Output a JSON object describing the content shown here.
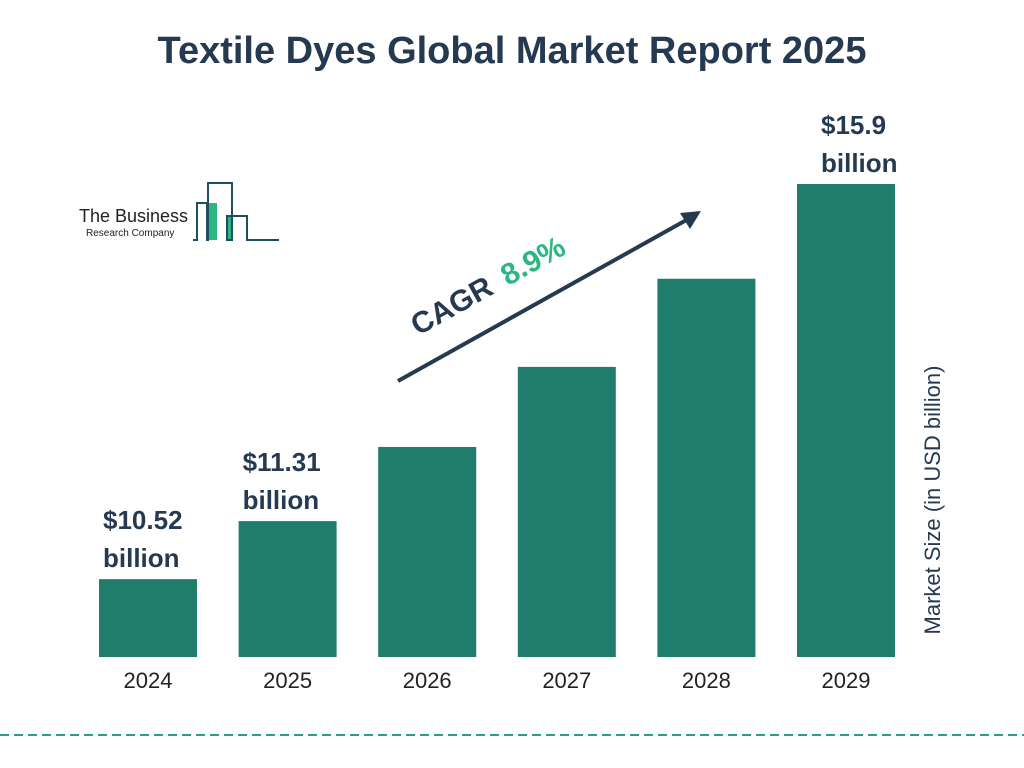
{
  "title": "Textile Dyes Global Market Report 2025",
  "logo": {
    "line1": "The Business",
    "line2": "Research Company"
  },
  "colors": {
    "bar": "#217d6b",
    "title": "#253a50",
    "cagr_value": "#2cb683",
    "divider": "#2a9d8f"
  },
  "chart_data": {
    "type": "bar",
    "title": "Textile Dyes Global Market Report 2025",
    "categories": [
      "2024",
      "2025",
      "2026",
      "2027",
      "2028",
      "2029"
    ],
    "values": [
      10.52,
      11.31,
      12.32,
      13.41,
      14.61,
      15.9
    ],
    "data_labels": [
      {
        "index": 0,
        "line1": "$10.52",
        "line2": "billion"
      },
      {
        "index": 1,
        "line1": "$11.31",
        "line2": "billion"
      },
      {
        "index": 5,
        "line1": "$15.9",
        "line2": "billion"
      }
    ],
    "ylabel": "Market Size (in USD billion)",
    "xlabel": "",
    "ylim": [
      9.46,
      15.9
    ],
    "grid": false,
    "annotation": {
      "label": "CAGR",
      "value": "8.9%"
    }
  }
}
